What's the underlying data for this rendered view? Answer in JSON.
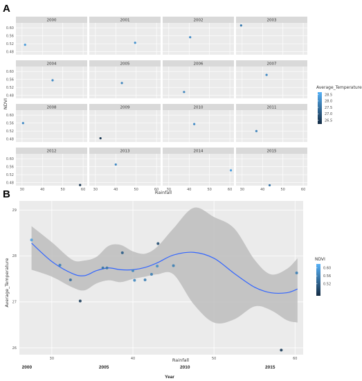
{
  "panel_labels": {
    "a": "A",
    "b": "B"
  },
  "colors": {
    "panel_bg": "#ebebeb",
    "strip_bg": "#d9d9d9",
    "grid_major": "#ffffff",
    "grid_minor": "#f4f4f4",
    "point_light": "#56b1f7",
    "point_dark": "#132b43",
    "smooth_line": "#3366ff",
    "ribbon": "#bdbdbd"
  },
  "chart_data": [
    {
      "type": "scatter",
      "facet_by": "year",
      "xlabel": "Rainfall",
      "ylabel": "NDVI",
      "xlim": [
        27,
        62
      ],
      "ylim": [
        0.465,
        0.625
      ],
      "x_ticks": [
        "30",
        "40",
        "50",
        "60"
      ],
      "x_tick_values": [
        30,
        40,
        50,
        60
      ],
      "y_ticks": [
        "0.48",
        "0.52",
        "0.56",
        "0.60"
      ],
      "y_tick_values": [
        0.48,
        0.52,
        0.56,
        0.6
      ],
      "grid": true,
      "legend": {
        "title": "Average_Temperature",
        "labels": [
          "28.5",
          "28.0",
          "27.5",
          "27.0",
          "26.5"
        ],
        "values": [
          28.5,
          28.0,
          27.5,
          27.0,
          26.5
        ],
        "range": [
          26.2,
          28.7
        ],
        "position": "right"
      },
      "facets": [
        {
          "label": "2000",
          "x": 31.5,
          "y": 0.515,
          "temp": 28.3
        },
        {
          "label": "2001",
          "x": 49.5,
          "y": 0.525,
          "temp": 28.1
        },
        {
          "label": "2002",
          "x": 40.5,
          "y": 0.553,
          "temp": 28.0
        },
        {
          "label": "2003",
          "x": 29.5,
          "y": 0.612,
          "temp": 27.7
        },
        {
          "label": "2004",
          "x": 45.0,
          "y": 0.556,
          "temp": 28.0
        },
        {
          "label": "2005",
          "x": 43.0,
          "y": 0.542,
          "temp": 27.9
        },
        {
          "label": "2006",
          "x": 37.5,
          "y": 0.497,
          "temp": 27.9
        },
        {
          "label": "2007",
          "x": 42.0,
          "y": 0.583,
          "temp": 28.0
        },
        {
          "label": "2008",
          "x": 30.5,
          "y": 0.56,
          "temp": 28.0
        },
        {
          "label": "2009",
          "x": 32.5,
          "y": 0.484,
          "temp": 26.4
        },
        {
          "label": "2010",
          "x": 42.5,
          "y": 0.555,
          "temp": 28.0
        },
        {
          "label": "2011",
          "x": 37.0,
          "y": 0.52,
          "temp": 27.9
        },
        {
          "label": "2012",
          "x": 58.5,
          "y": 0.468,
          "temp": 26.4
        },
        {
          "label": "2013",
          "x": 40.0,
          "y": 0.571,
          "temp": 28.0
        },
        {
          "label": "2014",
          "x": 60.5,
          "y": 0.542,
          "temp": 28.4
        },
        {
          "label": "2015",
          "x": 43.5,
          "y": 0.467,
          "temp": 27.6
        }
      ]
    },
    {
      "type": "scatter",
      "smoother": "loess",
      "xlabel": "Rainfall",
      "ylabel": "Average_Temperature",
      "xlim": [
        26,
        61
      ],
      "ylim": [
        25.85,
        29.2
      ],
      "x_ticks": [
        "30",
        "40",
        "50",
        "60"
      ],
      "x_tick_values": [
        30,
        40,
        50,
        60
      ],
      "y_ticks": [
        "29",
        "28",
        "27",
        "26"
      ],
      "y_tick_values": [
        29,
        28,
        27,
        26
      ],
      "grid": true,
      "legend": {
        "title": "NDVI",
        "labels": [
          "0.60",
          "0.56",
          "0.52"
        ],
        "values": [
          0.6,
          0.56,
          0.52
        ],
        "range": [
          0.46,
          0.62
        ],
        "position": "right"
      },
      "points": [
        {
          "x": 27.5,
          "y": 28.35,
          "ndvi": 0.6
        },
        {
          "x": 31.0,
          "y": 27.8,
          "ndvi": 0.56
        },
        {
          "x": 32.3,
          "y": 27.48,
          "ndvi": 0.54
        },
        {
          "x": 33.5,
          "y": 27.02,
          "ndvi": 0.48
        },
        {
          "x": 36.3,
          "y": 27.74,
          "ndvi": 0.55
        },
        {
          "x": 36.8,
          "y": 27.74,
          "ndvi": 0.55
        },
        {
          "x": 38.7,
          "y": 28.07,
          "ndvi": 0.52
        },
        {
          "x": 40.0,
          "y": 27.68,
          "ndvi": 0.57
        },
        {
          "x": 40.2,
          "y": 27.47,
          "ndvi": 0.57
        },
        {
          "x": 41.5,
          "y": 27.48,
          "ndvi": 0.56
        },
        {
          "x": 42.3,
          "y": 27.6,
          "ndvi": 0.56
        },
        {
          "x": 43.0,
          "y": 27.78,
          "ndvi": 0.58
        },
        {
          "x": 43.1,
          "y": 28.27,
          "ndvi": 0.5
        },
        {
          "x": 45.0,
          "y": 27.79,
          "ndvi": 0.56
        },
        {
          "x": 58.3,
          "y": 25.95,
          "ndvi": 0.48
        },
        {
          "x": 60.2,
          "y": 27.63,
          "ndvi": 0.56
        }
      ],
      "smooth_curve": [
        {
          "x": 27.5,
          "y": 28.28,
          "lo": 27.7,
          "hi": 28.65
        },
        {
          "x": 30,
          "y": 27.88,
          "lo": 27.55,
          "hi": 28.3
        },
        {
          "x": 32.5,
          "y": 27.62,
          "lo": 27.32,
          "hi": 27.92
        },
        {
          "x": 34,
          "y": 27.57,
          "lo": 27.25,
          "hi": 27.9
        },
        {
          "x": 35.5,
          "y": 27.68,
          "lo": 27.4,
          "hi": 27.98
        },
        {
          "x": 37,
          "y": 27.74,
          "lo": 27.47,
          "hi": 28.22
        },
        {
          "x": 38.5,
          "y": 27.7,
          "lo": 27.43,
          "hi": 28.24
        },
        {
          "x": 40,
          "y": 27.7,
          "lo": 27.5,
          "hi": 28.1
        },
        {
          "x": 41.5,
          "y": 27.75,
          "lo": 27.55,
          "hi": 28.05
        },
        {
          "x": 43,
          "y": 27.85,
          "lo": 27.6,
          "hi": 28.2
        },
        {
          "x": 45,
          "y": 28.02,
          "lo": 27.6,
          "hi": 28.6
        },
        {
          "x": 47.5,
          "y": 28.08,
          "lo": 26.95,
          "hi": 29.05
        },
        {
          "x": 50,
          "y": 27.95,
          "lo": 26.55,
          "hi": 28.85
        },
        {
          "x": 52.5,
          "y": 27.62,
          "lo": 26.62,
          "hi": 28.6
        },
        {
          "x": 55,
          "y": 27.32,
          "lo": 26.9,
          "hi": 27.92
        },
        {
          "x": 57,
          "y": 27.2,
          "lo": 26.82,
          "hi": 27.6
        },
        {
          "x": 59,
          "y": 27.2,
          "lo": 26.6,
          "hi": 27.72
        },
        {
          "x": 60.3,
          "y": 27.28,
          "lo": 26.55,
          "hi": 27.95
        }
      ],
      "year_axis": {
        "title": "Year",
        "labels": [
          "2000",
          "2005",
          "2010",
          "2015"
        ],
        "at_rainfall": [
          26.5,
          36,
          46,
          56.5
        ]
      }
    }
  ]
}
